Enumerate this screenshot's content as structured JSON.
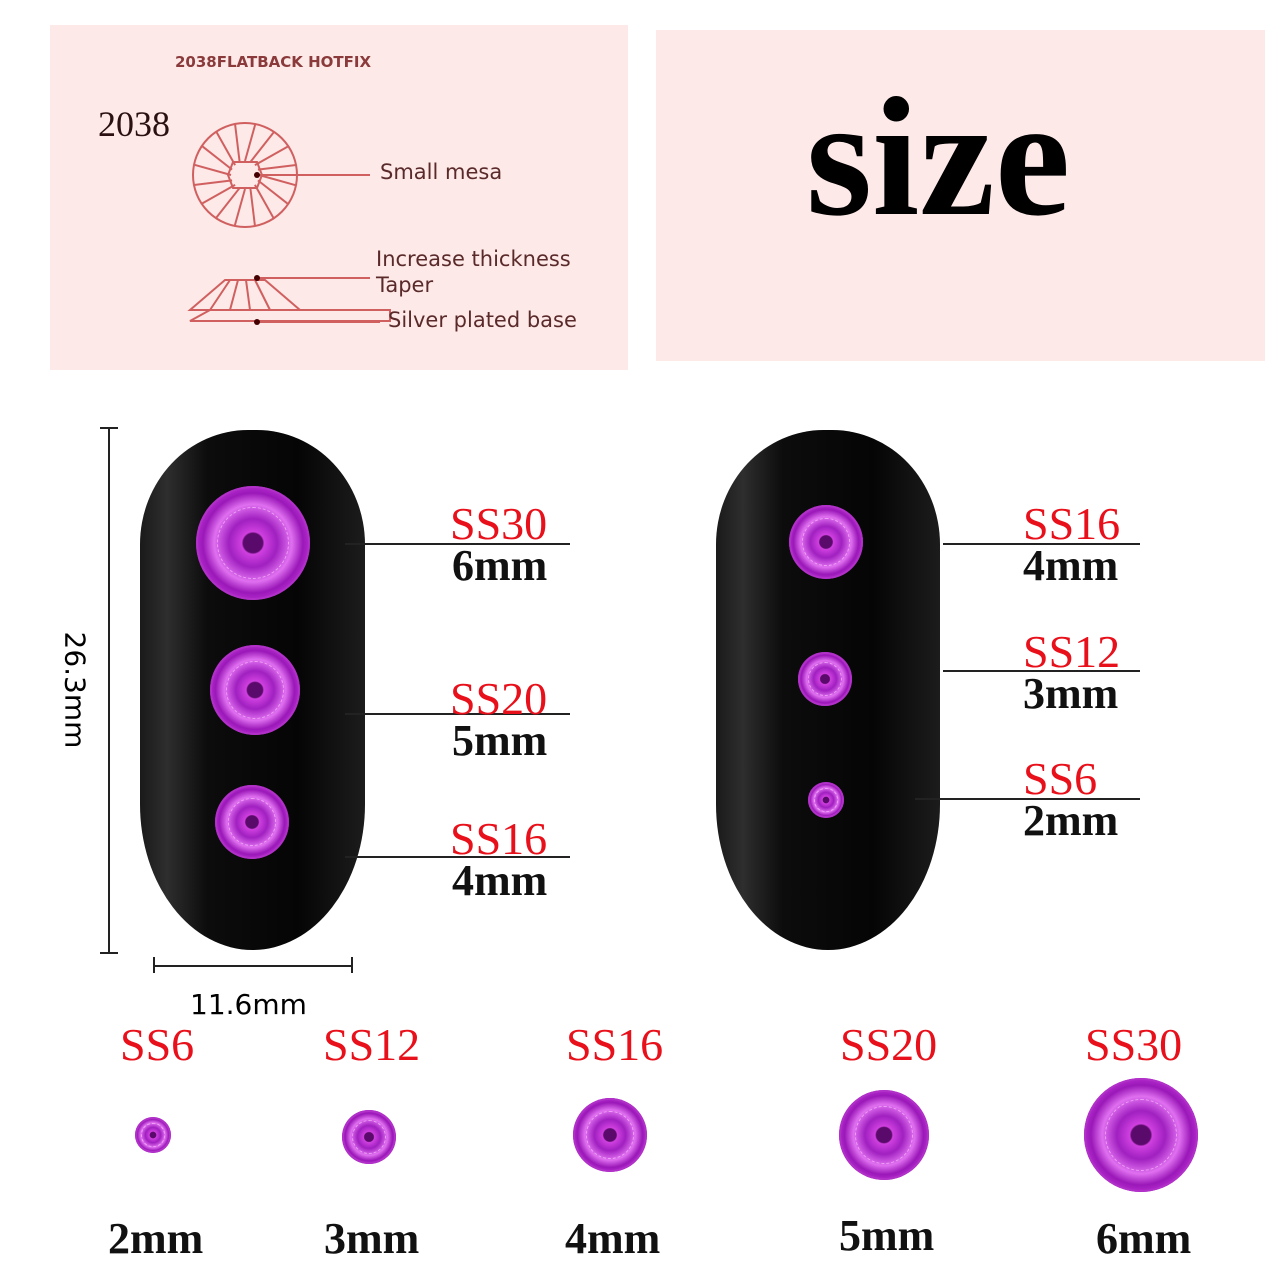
{
  "diagram": {
    "header": "2038FLATBACK HOTFIX",
    "model": "2038",
    "labels": [
      "Small mesa",
      "Increase thickness",
      "Taper",
      "Silver plated base"
    ]
  },
  "title": "size",
  "dimensions": {
    "height": "26.3mm",
    "width": "11.6mm"
  },
  "left_nail": [
    {
      "ss": "SS30",
      "mm": "6mm"
    },
    {
      "ss": "SS20",
      "mm": "5mm"
    },
    {
      "ss": "SS16",
      "mm": "4mm"
    }
  ],
  "right_nail": [
    {
      "ss": "SS16",
      "mm": "4mm"
    },
    {
      "ss": "SS12",
      "mm": "3mm"
    },
    {
      "ss": "SS6",
      "mm": "2mm"
    }
  ],
  "sizes": [
    {
      "ss": "SS6",
      "mm": "2mm"
    },
    {
      "ss": "SS12",
      "mm": "3mm"
    },
    {
      "ss": "SS16",
      "mm": "4mm"
    },
    {
      "ss": "SS20",
      "mm": "5mm"
    },
    {
      "ss": "SS30",
      "mm": "6mm"
    }
  ],
  "colors": {
    "stone": "#c030d8",
    "label_red": "#e8101a",
    "panel": "#fde9e8",
    "line": "#d06060"
  }
}
